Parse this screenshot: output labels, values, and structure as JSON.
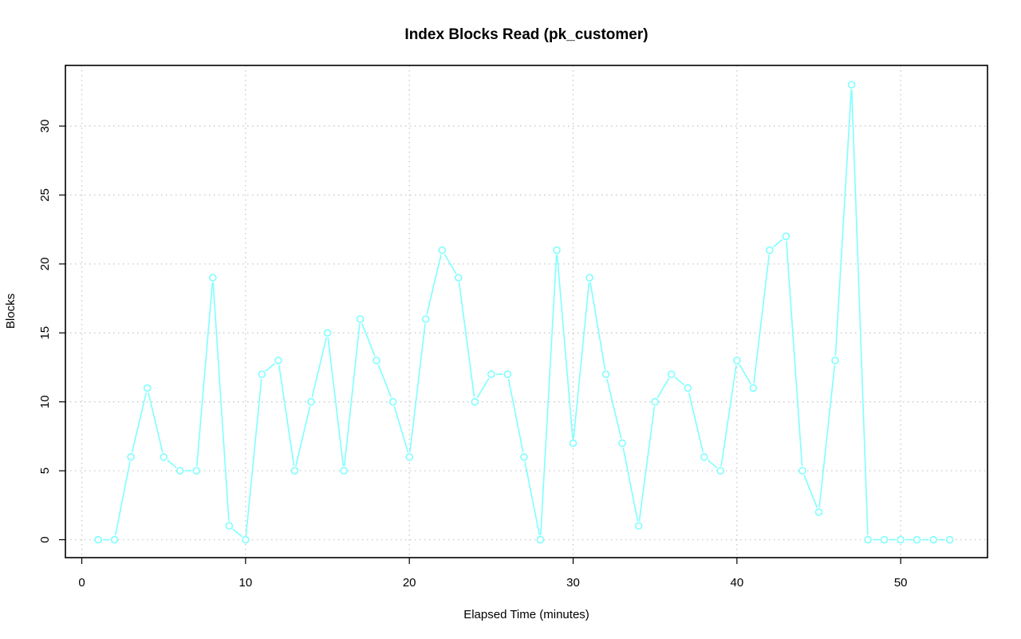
{
  "chart_data": {
    "type": "line",
    "title": "Index Blocks Read (pk_customer)",
    "xlabel": "Elapsed Time (minutes)",
    "ylabel": "Blocks",
    "xlim": [
      -1,
      55.3
    ],
    "ylim": [
      -1.3,
      34.4
    ],
    "xticks": [
      0,
      10,
      20,
      30,
      40,
      50
    ],
    "yticks": [
      0,
      5,
      10,
      15,
      20,
      25,
      30
    ],
    "grid": true,
    "x": [
      1,
      2,
      3,
      4,
      5,
      6,
      7,
      8,
      9,
      10,
      11,
      12,
      13,
      14,
      15,
      16,
      17,
      18,
      19,
      20,
      21,
      22,
      23,
      24,
      25,
      26,
      27,
      28,
      29,
      30,
      31,
      32,
      33,
      34,
      35,
      36,
      37,
      38,
      39,
      40,
      41,
      42,
      43,
      44,
      45,
      46,
      47,
      48,
      49,
      50,
      51,
      52,
      53
    ],
    "series": [
      {
        "color": "#7fffff",
        "values": [
          0,
          0,
          6,
          11,
          6,
          5,
          5,
          19,
          1,
          0,
          12,
          13,
          5,
          10,
          15,
          5,
          16,
          13,
          10,
          6,
          16,
          21,
          19,
          10,
          12,
          12,
          6,
          0,
          21,
          7,
          19,
          12,
          7,
          1,
          10,
          12,
          11,
          6,
          5,
          13,
          11,
          21,
          22,
          5,
          2,
          13,
          33,
          0,
          0,
          0,
          0,
          0,
          0
        ]
      }
    ]
  }
}
